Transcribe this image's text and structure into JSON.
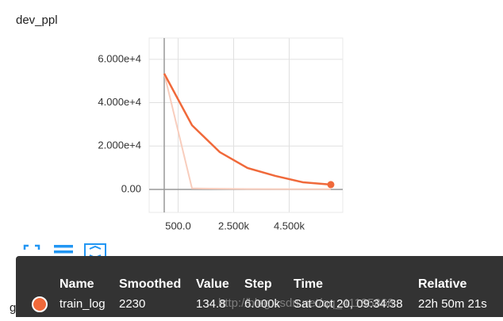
{
  "chart_data": {
    "type": "line",
    "title": "dev_ppl",
    "x": [
      0,
      1000,
      2000,
      3000,
      4000,
      5000,
      6000
    ],
    "series": [
      {
        "name": "train_log",
        "color": "#f0693a",
        "values": [
          53400,
          29600,
          17200,
          9870,
          6220,
          3290,
          2230
        ],
        "raw_values": [
          53400,
          500,
          300,
          200,
          150,
          140,
          134.8
        ],
        "raw_color": "#f8cdbd"
      }
    ],
    "xlim": [
      -543,
      6429
    ],
    "xticks": [
      {
        "value": 500,
        "label": "500.0"
      },
      {
        "value": 2500,
        "label": "2.500k"
      },
      {
        "value": 4500,
        "label": "4.500k"
      }
    ],
    "ylim": [
      -10600,
      69800
    ],
    "yticks": [
      {
        "value": 0,
        "label": "0.00"
      },
      {
        "value": 20000,
        "label": "2.000e+4"
      },
      {
        "value": 40000,
        "label": "4.000e+4"
      },
      {
        "value": 60000,
        "label": "6.000e+4"
      }
    ],
    "grid": true
  },
  "tooltip": {
    "headers": [
      "Name",
      "Smoothed",
      "Value",
      "Step",
      "Time",
      "Relative"
    ],
    "row": [
      "train_log",
      "2230",
      "134.8",
      "6.000k",
      "Sat Oct 20, 09:34:38",
      "22h 50m 21s"
    ]
  },
  "next_card_title": "grad_norm",
  "watermark": "http://blog.csdn.net/qq_41185868"
}
